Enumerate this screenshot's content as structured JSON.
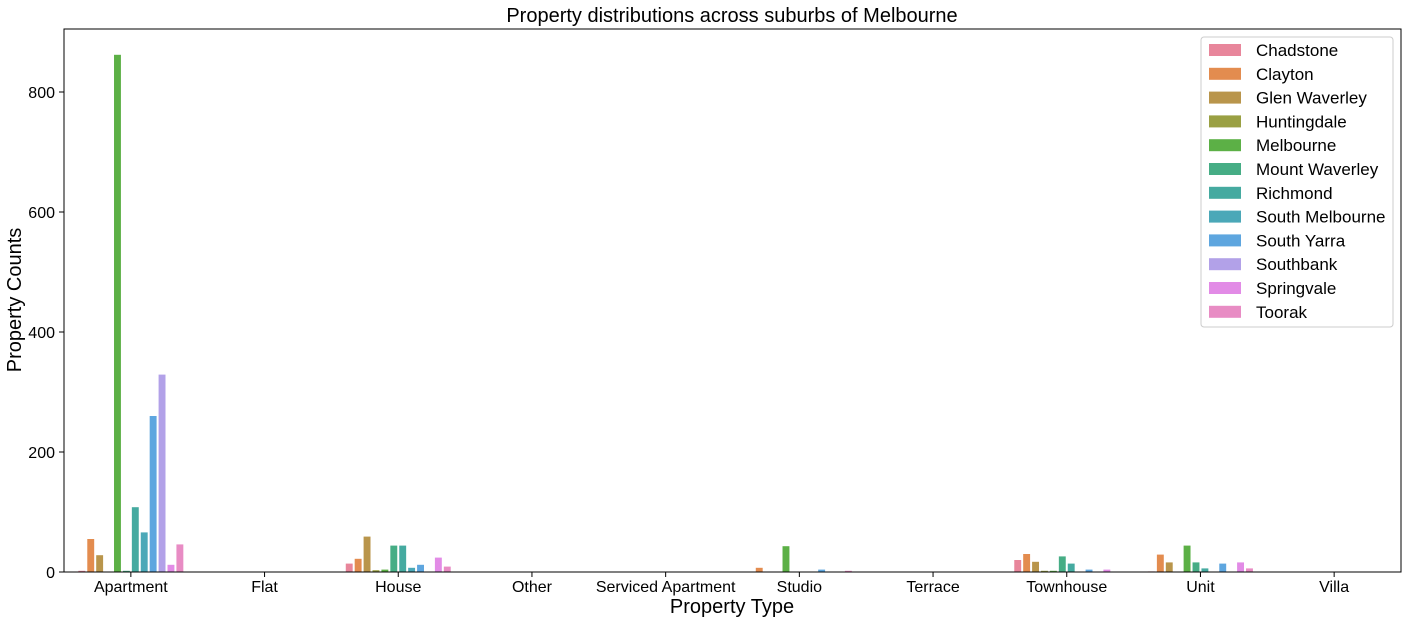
{
  "chart_data": {
    "type": "bar",
    "title": "Property distributions across suburbs of Melbourne",
    "xlabel": "Property Type",
    "ylabel": "Property Counts",
    "ylim": [
      0,
      905
    ],
    "yticks": [
      0,
      200,
      400,
      600,
      800
    ],
    "categories": [
      "Apartment",
      "Flat",
      "House",
      "Other",
      "Serviced Apartment",
      "Studio",
      "Terrace",
      "Townhouse",
      "Unit",
      "Villa"
    ],
    "legend_position": "top-right",
    "grid": false,
    "series": [
      {
        "name": "Chadstone",
        "color": "#e8869b",
        "values": [
          2,
          0,
          14,
          0,
          0,
          0,
          0,
          20,
          1,
          0
        ]
      },
      {
        "name": "Clayton",
        "color": "#e38c4f",
        "values": [
          55,
          0,
          22,
          0,
          0,
          7,
          0,
          30,
          29,
          0
        ]
      },
      {
        "name": "Glen Waverley",
        "color": "#b9954b",
        "values": [
          28,
          0,
          59,
          0,
          0,
          0,
          0,
          17,
          16,
          0
        ]
      },
      {
        "name": "Huntingdale",
        "color": "#9aa043",
        "values": [
          0,
          0,
          3,
          0,
          0,
          0,
          0,
          2,
          0,
          0
        ]
      },
      {
        "name": "Melbourne",
        "color": "#5cb046",
        "values": [
          862,
          0,
          4,
          0,
          0,
          43,
          0,
          2,
          44,
          0
        ]
      },
      {
        "name": "Mount Waverley",
        "color": "#46ad85",
        "values": [
          2,
          0,
          44,
          0,
          0,
          0,
          0,
          26,
          16,
          0
        ]
      },
      {
        "name": "Richmond",
        "color": "#45aaa0",
        "values": [
          108,
          0,
          44,
          0,
          0,
          0,
          0,
          14,
          6,
          0
        ]
      },
      {
        "name": "South Melbourne",
        "color": "#4ba8b8",
        "values": [
          66,
          0,
          7,
          0,
          0,
          0,
          0,
          0,
          0,
          0
        ]
      },
      {
        "name": "South Yarra",
        "color": "#5ea6df",
        "values": [
          260,
          0,
          12,
          0,
          0,
          4,
          0,
          4,
          14,
          0
        ]
      },
      {
        "name": "Southbank",
        "color": "#b2a1e8",
        "values": [
          329,
          0,
          0,
          0,
          0,
          0,
          0,
          0,
          0,
          0
        ]
      },
      {
        "name": "Springvale",
        "color": "#e28be6",
        "values": [
          12,
          0,
          24,
          0,
          0,
          0,
          0,
          4,
          16,
          0
        ]
      },
      {
        "name": "Toorak",
        "color": "#e88cc4",
        "values": [
          46,
          0,
          9,
          0,
          0,
          2,
          0,
          0,
          6,
          0
        ]
      }
    ]
  }
}
